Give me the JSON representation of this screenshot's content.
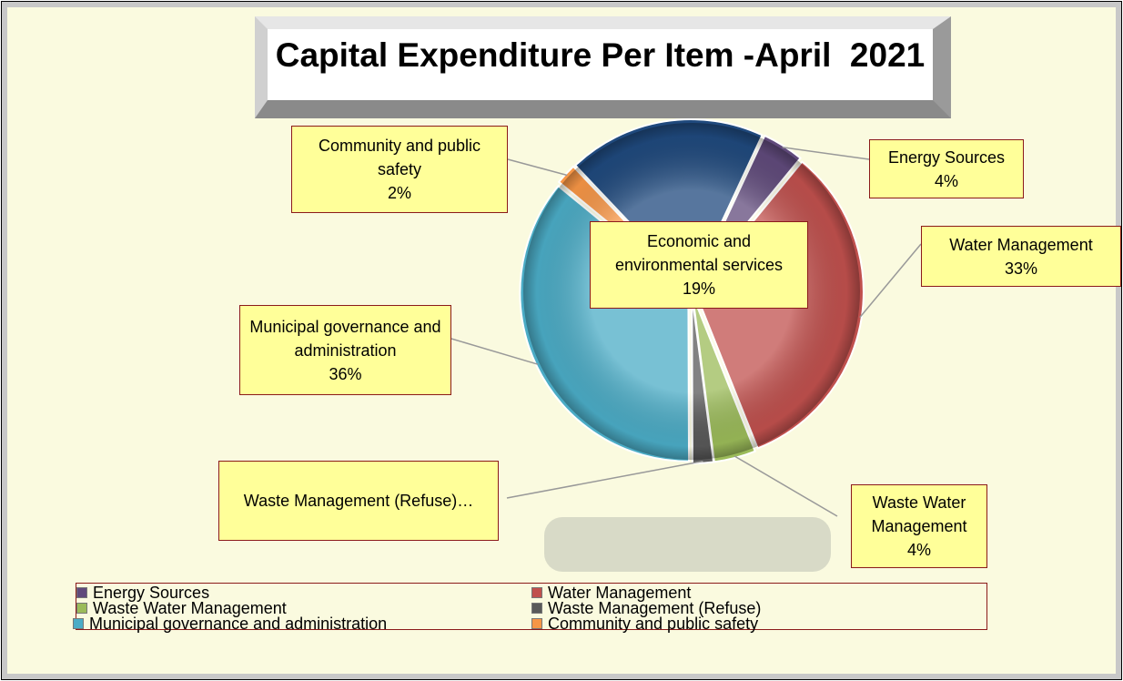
{
  "chart_data": {
    "type": "pie",
    "title": "Capital Expenditure Per Item -April  2021",
    "categories": [
      "Energy Sources",
      "Water Management",
      "Waste Water Management",
      "Waste Management (Refuse)",
      "Municipal governance and administration",
      "Community and public safety",
      "Economic and environmental services"
    ],
    "values": [
      4,
      33,
      4,
      2,
      36,
      2,
      19
    ],
    "value_labels": [
      "4%",
      "33%",
      "4%",
      null,
      "36%",
      "2%",
      "19%"
    ],
    "slice_labels": [
      "Energy Sources",
      "Water Management",
      "Waste Water Management",
      "Waste Management (Refuse)…",
      "Municipal governance and administration",
      "Community and public safety",
      "Economic and environmental services"
    ],
    "colors": [
      "#604a7b",
      "#c0504d",
      "#9bbb59",
      "#595959",
      "#4bacc6",
      "#f79646",
      "#1f497d"
    ],
    "legend": [
      "Energy Sources",
      "Water Management",
      "Waste Water Management",
      "Waste Management (Refuse)",
      "Municipal governance and administration",
      "Community and public safety"
    ]
  }
}
